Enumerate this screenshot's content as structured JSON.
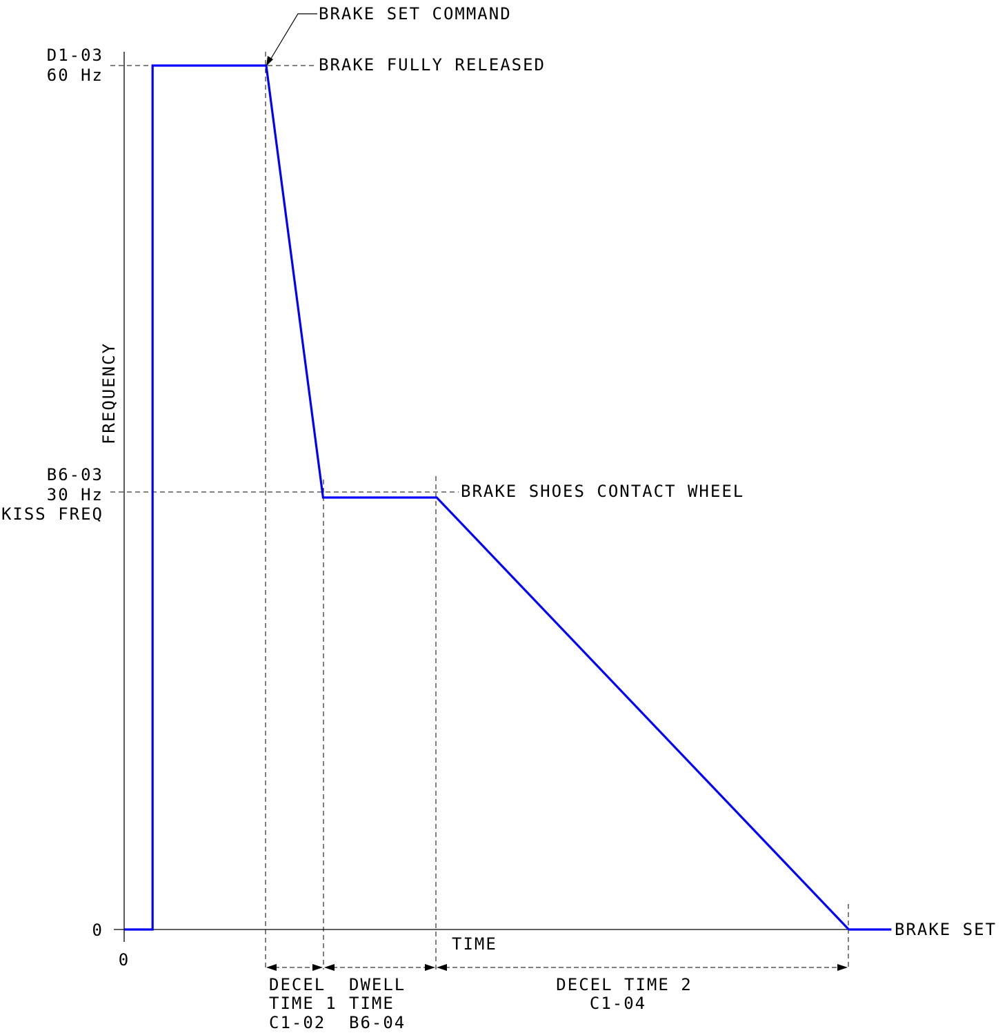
{
  "colors": {
    "profile": "#0000ff",
    "lines": "#000000",
    "background": "#ffffff"
  },
  "axes": {
    "ylabel": "FREQUENCY",
    "xlabel": "TIME",
    "origin": "0",
    "y_ticks": {
      "max": {
        "line1": "D1-03",
        "line2": "60 Hz"
      },
      "kiss": {
        "line1": "B6-03",
        "line2": "30 Hz",
        "line3": "KISS FREQ"
      },
      "zero": "0"
    }
  },
  "annotations": {
    "brake_set_command": "BRAKE SET COMMAND",
    "brake_fully_released": "BRAKE FULLY RELEASED",
    "brake_shoes_contact": "BRAKE SHOES CONTACT WHEEL",
    "brake_set": "BRAKE SET"
  },
  "intervals": [
    {
      "line1": "DECEL",
      "line2": "TIME 1",
      "line3": "C1-02"
    },
    {
      "line1": "DWELL",
      "line2": "TIME",
      "line3": "B6-04"
    },
    {
      "line1": "DECEL TIME 2",
      "line2": "C1-04"
    }
  ],
  "profile": [
    {
      "t": 0,
      "f": 0
    },
    {
      "t": 1,
      "f": 0
    },
    {
      "t": 1,
      "f": 60
    },
    {
      "t": 5,
      "f": 60
    },
    {
      "t": 7,
      "f": 30
    },
    {
      "t": 11,
      "f": 30
    },
    {
      "t": 25.5,
      "f": 0
    },
    {
      "t": 27,
      "f": 0
    }
  ]
}
